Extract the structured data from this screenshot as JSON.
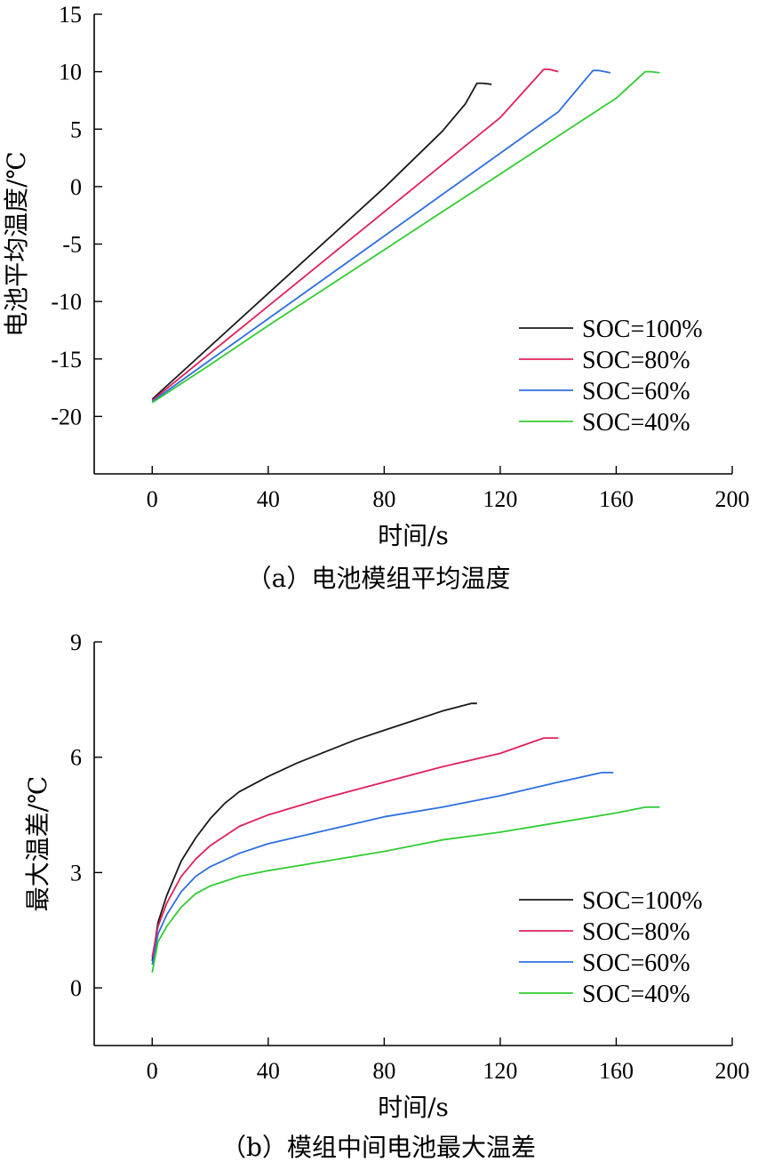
{
  "chart_data": [
    {
      "type": "line",
      "caption": "（a）电池模组平均温度",
      "xlabel": "时间/s",
      "ylabel": "电池平均温度/℃",
      "xlim": [
        -20,
        200
      ],
      "ylim": [
        -25,
        15
      ],
      "xticks": [
        0,
        40,
        80,
        120,
        160,
        200
      ],
      "yticks": [
        -20,
        -15,
        -10,
        -5,
        0,
        5,
        10,
        15
      ],
      "legend_position": "bottom-right",
      "series": [
        {
          "name": "SOC=100%",
          "color": "#1a1a1a",
          "x": [
            0,
            20,
            40,
            60,
            80,
            100,
            108,
            112,
            114,
            117
          ],
          "y": [
            -18.5,
            -13.9,
            -9.3,
            -4.7,
            -0.1,
            4.8,
            7.2,
            9.0,
            9.0,
            8.9
          ]
        },
        {
          "name": "SOC=80%",
          "color": "#e0205a",
          "x": [
            0,
            20,
            40,
            60,
            80,
            100,
            120,
            135,
            137,
            140
          ],
          "y": [
            -18.6,
            -14.5,
            -10.4,
            -6.3,
            -2.2,
            1.9,
            6.0,
            10.2,
            10.2,
            10.0
          ]
        },
        {
          "name": "SOC=60%",
          "color": "#2e6fe0",
          "x": [
            0,
            20,
            40,
            60,
            80,
            100,
            120,
            140,
            152,
            154,
            158
          ],
          "y": [
            -18.7,
            -15.1,
            -11.5,
            -7.9,
            -4.3,
            -0.7,
            2.9,
            6.5,
            10.1,
            10.1,
            9.9
          ]
        },
        {
          "name": "SOC=40%",
          "color": "#33cc33",
          "x": [
            0,
            20,
            40,
            60,
            80,
            100,
            120,
            140,
            160,
            170,
            172,
            175
          ],
          "y": [
            -18.8,
            -15.5,
            -12.1,
            -8.8,
            -5.5,
            -2.2,
            1.1,
            4.4,
            7.7,
            10.0,
            10.0,
            9.9
          ]
        }
      ]
    },
    {
      "type": "line",
      "caption": "（b）模组中间电池最大温差",
      "xlabel": "时间/s",
      "ylabel": "最大温差/℃",
      "xlim": [
        -20,
        200
      ],
      "ylim": [
        -1.5,
        9
      ],
      "xticks": [
        0,
        40,
        80,
        120,
        160,
        200
      ],
      "yticks": [
        0,
        3,
        6,
        9
      ],
      "legend_position": "bottom-right",
      "series": [
        {
          "name": "SOC=100%",
          "color": "#1a1a1a",
          "x": [
            0,
            2,
            5,
            10,
            15,
            20,
            25,
            30,
            40,
            50,
            60,
            70,
            80,
            90,
            100,
            110,
            112
          ],
          "y": [
            0.7,
            1.7,
            2.4,
            3.3,
            3.9,
            4.4,
            4.8,
            5.1,
            5.5,
            5.85,
            6.15,
            6.45,
            6.7,
            6.95,
            7.2,
            7.4,
            7.4
          ]
        },
        {
          "name": "SOC=80%",
          "color": "#e0205a",
          "x": [
            0,
            2,
            5,
            10,
            15,
            20,
            30,
            40,
            60,
            80,
            100,
            120,
            135,
            140
          ],
          "y": [
            0.8,
            1.6,
            2.2,
            2.9,
            3.35,
            3.7,
            4.2,
            4.5,
            4.95,
            5.35,
            5.75,
            6.1,
            6.5,
            6.5
          ]
        },
        {
          "name": "SOC=60%",
          "color": "#2e6fe0",
          "x": [
            0,
            2,
            5,
            10,
            15,
            20,
            30,
            40,
            60,
            80,
            100,
            120,
            140,
            155,
            159
          ],
          "y": [
            0.6,
            1.4,
            1.9,
            2.5,
            2.9,
            3.15,
            3.5,
            3.75,
            4.1,
            4.45,
            4.7,
            5.0,
            5.35,
            5.6,
            5.6
          ]
        },
        {
          "name": "SOC=40%",
          "color": "#33cc33",
          "x": [
            0,
            2,
            5,
            10,
            15,
            20,
            30,
            40,
            60,
            80,
            100,
            120,
            140,
            160,
            170,
            175
          ],
          "y": [
            0.4,
            1.2,
            1.6,
            2.1,
            2.45,
            2.65,
            2.9,
            3.05,
            3.3,
            3.55,
            3.85,
            4.05,
            4.3,
            4.55,
            4.7,
            4.7
          ]
        }
      ]
    }
  ]
}
